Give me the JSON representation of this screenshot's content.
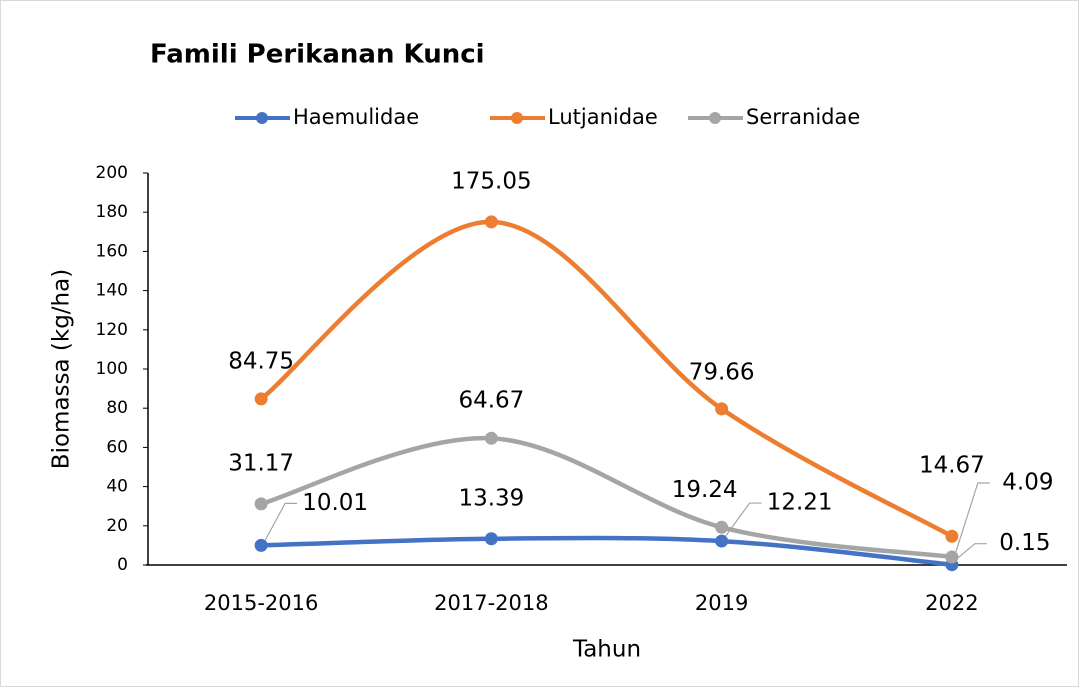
{
  "chart_data": {
    "type": "line",
    "title": "Famili Perikanan Kunci",
    "x_label": "Tahun",
    "y_label": "Biomassa (kg/ha)",
    "categories": [
      "2015-2016",
      "2017-2018",
      "2019",
      "2022"
    ],
    "series": [
      {
        "name": "Haemulidae",
        "color": "#4472c4",
        "values": [
          10.01,
          13.39,
          12.21,
          0.15
        ]
      },
      {
        "name": "Lutjanidae",
        "color": "#ed7d31",
        "values": [
          84.75,
          175.05,
          79.66,
          14.67
        ]
      },
      {
        "name": "Serranidae",
        "color": "#a5a5a5",
        "values": [
          31.17,
          64.67,
          19.24,
          4.09
        ]
      }
    ],
    "ylim": [
      0,
      200
    ],
    "yticks": [
      0,
      20,
      40,
      60,
      80,
      100,
      120,
      140,
      160,
      180,
      200
    ],
    "smooth": true,
    "legend": "top"
  }
}
